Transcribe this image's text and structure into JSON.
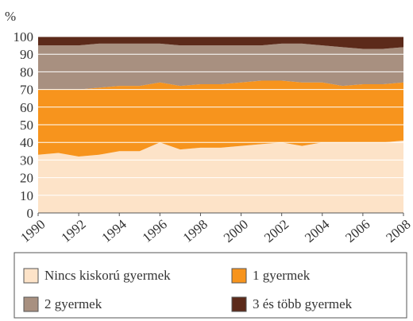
{
  "chart_data": {
    "type": "stacked_area",
    "y_label": "%",
    "x": [
      1990,
      1991,
      1992,
      1993,
      1994,
      1995,
      1996,
      1997,
      1998,
      1999,
      2000,
      2001,
      2002,
      2003,
      2004,
      2005,
      2006,
      2007,
      2008
    ],
    "xlim": [
      1990,
      2008
    ],
    "xticks": [
      1990,
      1992,
      1994,
      1996,
      1998,
      2000,
      2002,
      2004,
      2006,
      2008
    ],
    "ylim": [
      0,
      100
    ],
    "yticks": [
      0,
      10,
      20,
      30,
      40,
      50,
      60,
      70,
      80,
      90,
      100
    ],
    "grid": true,
    "series": [
      {
        "name": "Nincs kiskorú gyermek",
        "color": "#fde3c8",
        "values": [
          33,
          34,
          32,
          33,
          35,
          35,
          40,
          36,
          37,
          37,
          38,
          39,
          40,
          38,
          40,
          40,
          40,
          40,
          41
        ]
      },
      {
        "name": "1 gyermek",
        "color": "#f7941d",
        "values": [
          37,
          36,
          38,
          38,
          37,
          37,
          34,
          36,
          36,
          36,
          36,
          36,
          35,
          36,
          34,
          32,
          33,
          33,
          33
        ]
      },
      {
        "name": "2 gyermek",
        "color": "#a89080",
        "values": [
          25,
          25,
          25,
          25,
          24,
          24,
          22,
          23,
          22,
          22,
          21,
          20,
          21,
          22,
          21,
          22,
          20,
          20,
          20
        ]
      },
      {
        "name": "3 és több gyermek",
        "color": "#5c2a1a",
        "values": [
          5,
          5,
          5,
          4,
          4,
          4,
          4,
          5,
          5,
          5,
          5,
          5,
          4,
          4,
          5,
          6,
          7,
          7,
          6
        ]
      }
    ]
  }
}
